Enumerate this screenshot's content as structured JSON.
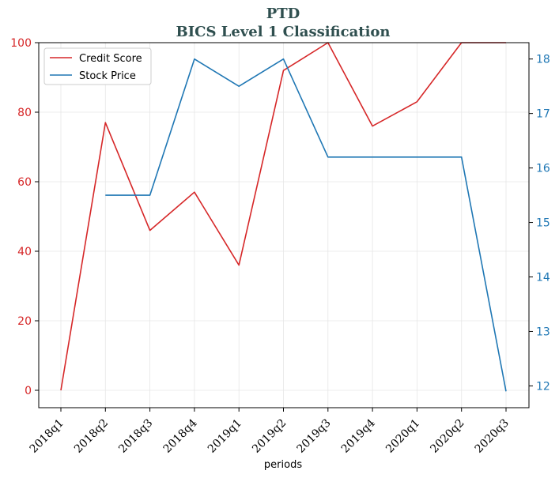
{
  "chart_data": {
    "type": "line",
    "title": "PTD",
    "subtitle": "BICS Level 1 Classification",
    "xlabel": "periods",
    "categories": [
      "2018q1",
      "2018q2",
      "2018q3",
      "2018q4",
      "2019q1",
      "2019q2",
      "2019q3",
      "2019q4",
      "2020q1",
      "2020q2",
      "2020q3"
    ],
    "y_left": {
      "range": [
        -5,
        100
      ],
      "ticks": [
        0,
        20,
        40,
        60,
        80,
        100
      ],
      "color": "#d62728"
    },
    "y_right": {
      "range": [
        11.6,
        18.3
      ],
      "ticks": [
        12,
        13,
        14,
        15,
        16,
        17,
        18
      ],
      "color": "#1f77b4"
    },
    "grid": true,
    "legend_position": "top-left",
    "series": [
      {
        "name": "Credit Score",
        "axis": "left",
        "color": "#d62728",
        "values": [
          0,
          77,
          46,
          57,
          36,
          92,
          100,
          76,
          83,
          100,
          100
        ]
      },
      {
        "name": "Stock Price",
        "axis": "right",
        "color": "#1f77b4",
        "values": [
          null,
          15.5,
          15.5,
          18.0,
          17.5,
          18.0,
          16.2,
          16.2,
          16.2,
          16.2,
          11.9
        ]
      }
    ]
  }
}
